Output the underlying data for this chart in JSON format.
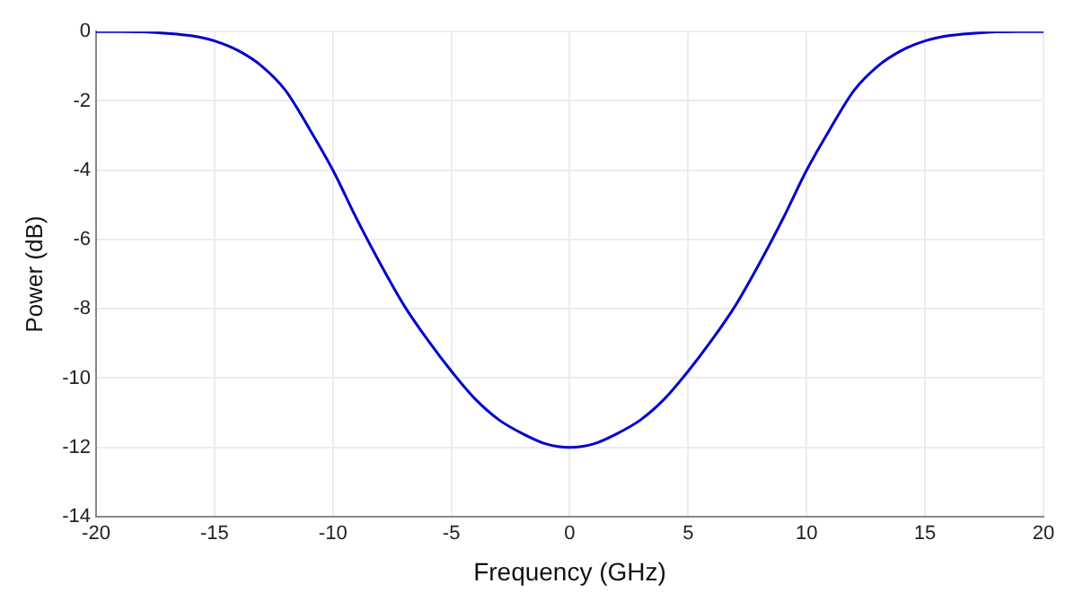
{
  "chart_data": {
    "type": "line",
    "xlabel": "Frequency (GHz)",
    "ylabel": "Power (dB)",
    "x": [
      -20,
      -19,
      -18,
      -17,
      -16,
      -15,
      -14,
      -13,
      -12,
      -11,
      -10,
      -9,
      -8,
      -7,
      -6,
      -5,
      -4,
      -3,
      -2,
      -1,
      0,
      1,
      2,
      3,
      4,
      5,
      6,
      7,
      8,
      9,
      10,
      11,
      12,
      13,
      14,
      15,
      16,
      17,
      18,
      19,
      20
    ],
    "series": [
      {
        "color": "#0000cc",
        "values": [
          0,
          0,
          -0.01,
          -0.05,
          -0.12,
          -0.27,
          -0.55,
          -1.0,
          -1.7,
          -2.8,
          -4.0,
          -5.4,
          -6.7,
          -7.9,
          -8.9,
          -9.8,
          -10.6,
          -11.2,
          -11.6,
          -11.9,
          -12,
          -11.9,
          -11.6,
          -11.2,
          -10.6,
          -9.8,
          -8.9,
          -7.9,
          -6.7,
          -5.4,
          -4.0,
          -2.8,
          -1.7,
          -1.0,
          -0.55,
          -0.27,
          -0.12,
          -0.05,
          -0.01,
          0,
          0
        ]
      }
    ],
    "xlim": [
      -20,
      20
    ],
    "xticks": [
      -20,
      -15,
      -10,
      -5,
      0,
      5,
      10,
      15,
      20
    ],
    "ylim": [
      -14,
      0
    ],
    "yticks": [
      -14,
      -12,
      -10,
      -8,
      -6,
      -4,
      -2,
      0
    ],
    "grid": true,
    "legend": false,
    "marker": "none",
    "line_style": "solid"
  }
}
